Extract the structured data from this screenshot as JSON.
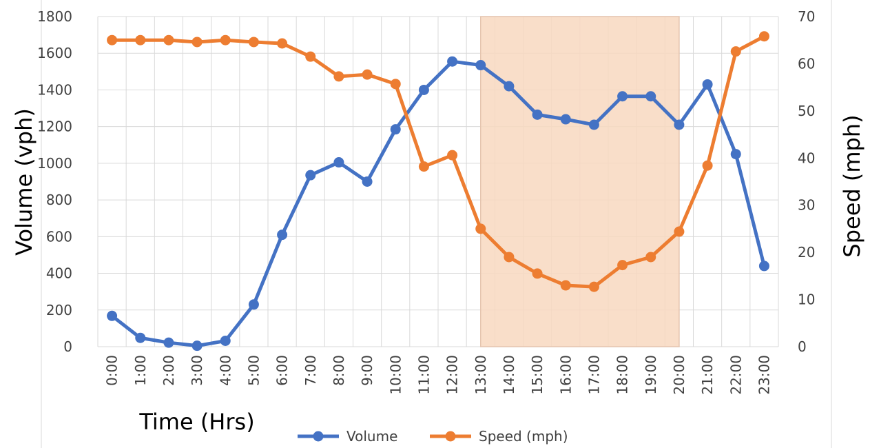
{
  "chart_data": {
    "type": "line",
    "categories": [
      "0:00",
      "1:00",
      "2:00",
      "3:00",
      "4:00",
      "5:00",
      "6:00",
      "7:00",
      "8:00",
      "9:00",
      "10:00",
      "11:00",
      "12:00",
      "13:00",
      "14:00",
      "15:00",
      "16:00",
      "17:00",
      "18:00",
      "19:00",
      "20:00",
      "21:00",
      "22:00",
      "23:00"
    ],
    "series": [
      {
        "name": "Volume",
        "axis": "left",
        "color": "#4472C4",
        "values": [
          168,
          48,
          22,
          5,
          32,
          230,
          610,
          935,
          1005,
          900,
          1185,
          1400,
          1555,
          1535,
          1420,
          1265,
          1240,
          1210,
          1365,
          1365,
          1210,
          1430,
          1050,
          440
        ]
      },
      {
        "name": "Speed (mph)",
        "axis": "right",
        "color": "#ED7D31",
        "values": [
          65,
          65,
          65,
          64.6,
          65,
          64.6,
          64.3,
          61.5,
          57.3,
          57.7,
          55.7,
          38.2,
          40.6,
          25,
          19,
          15.5,
          13,
          12.7,
          17.3,
          19,
          24.4,
          38.4,
          62.6,
          65.8
        ]
      }
    ],
    "xlabel": "Time (Hrs)",
    "ylabel": "Volume (vph)",
    "y2label": "Speed (mph)",
    "ylim": [
      0,
      1800
    ],
    "y2lim": [
      0,
      70
    ],
    "yticks": [
      "0",
      "200",
      "400",
      "600",
      "800",
      "1000",
      "1200",
      "1400",
      "1600",
      "1800"
    ],
    "y2ticks": [
      "0",
      "10",
      "20",
      "30",
      "40",
      "50",
      "60",
      "70"
    ],
    "highlight": {
      "from": "13:00",
      "to": "20:00",
      "color": "#F8D8BF"
    },
    "grid": true,
    "legend": "bottom"
  }
}
